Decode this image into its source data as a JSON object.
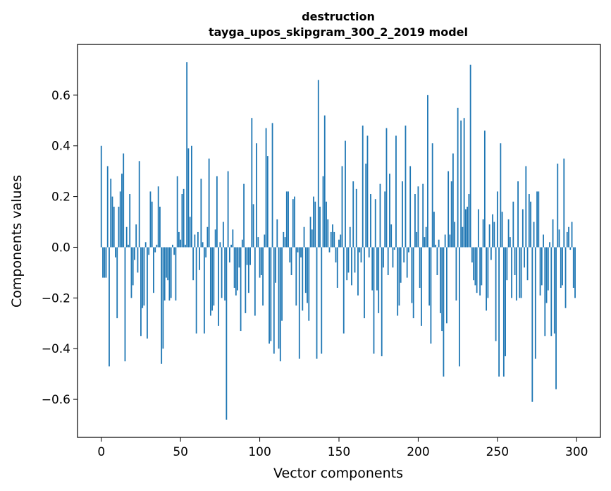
{
  "chart_data": {
    "type": "bar",
    "title": "destruction",
    "subtitle": "tayga_upos_skipgram_300_2_2019 model",
    "xlabel": "Vector components",
    "ylabel": "Components values",
    "xlim": [
      -15,
      315
    ],
    "ylim": [
      -0.75,
      0.8
    ],
    "xticks": [
      0,
      50,
      100,
      150,
      200,
      250,
      300
    ],
    "yticks": [
      -0.6,
      -0.4,
      -0.2,
      0.0,
      0.2,
      0.4,
      0.6
    ],
    "ytick_labels": [
      "−0.6",
      "−0.4",
      "−0.2",
      "0.0",
      "0.2",
      "0.4",
      "0.6"
    ],
    "xtick_labels": [
      "0",
      "50",
      "100",
      "150",
      "200",
      "250",
      "300"
    ],
    "bar_color": "#1f77b4",
    "grid": false,
    "legend": false,
    "x": [
      0,
      1,
      2,
      3,
      4,
      5,
      6,
      7,
      8,
      9,
      10,
      11,
      12,
      13,
      14,
      15,
      16,
      17,
      18,
      19,
      20,
      21,
      22,
      23,
      24,
      25,
      26,
      27,
      28,
      29,
      30,
      31,
      32,
      33,
      34,
      35,
      36,
      37,
      38,
      39,
      40,
      41,
      42,
      43,
      44,
      45,
      46,
      47,
      48,
      49,
      50,
      51,
      52,
      53,
      54,
      55,
      56,
      57,
      58,
      59,
      60,
      61,
      62,
      63,
      64,
      65,
      66,
      67,
      68,
      69,
      70,
      71,
      72,
      73,
      74,
      75,
      76,
      77,
      78,
      79,
      80,
      81,
      82,
      83,
      84,
      85,
      86,
      87,
      88,
      89,
      90,
      91,
      92,
      93,
      94,
      95,
      96,
      97,
      98,
      99,
      100,
      101,
      102,
      103,
      104,
      105,
      106,
      107,
      108,
      109,
      110,
      111,
      112,
      113,
      114,
      115,
      116,
      117,
      118,
      119,
      120,
      121,
      122,
      123,
      124,
      125,
      126,
      127,
      128,
      129,
      130,
      131,
      132,
      133,
      134,
      135,
      136,
      137,
      138,
      139,
      140,
      141,
      142,
      143,
      144,
      145,
      146,
      147,
      148,
      149,
      150,
      151,
      152,
      153,
      154,
      155,
      156,
      157,
      158,
      159,
      160,
      161,
      162,
      163,
      164,
      165,
      166,
      167,
      168,
      169,
      170,
      171,
      172,
      173,
      174,
      175,
      176,
      177,
      178,
      179,
      180,
      181,
      182,
      183,
      184,
      185,
      186,
      187,
      188,
      189,
      190,
      191,
      192,
      193,
      194,
      195,
      196,
      197,
      198,
      199,
      200,
      201,
      202,
      203,
      204,
      205,
      206,
      207,
      208,
      209,
      210,
      211,
      212,
      213,
      214,
      215,
      216,
      217,
      218,
      219,
      220,
      221,
      222,
      223,
      224,
      225,
      226,
      227,
      228,
      229,
      230,
      231,
      232,
      233,
      234,
      235,
      236,
      237,
      238,
      239,
      240,
      241,
      242,
      243,
      244,
      245,
      246,
      247,
      248,
      249,
      250,
      251,
      252,
      253,
      254,
      255,
      256,
      257,
      258,
      259,
      260,
      261,
      262,
      263,
      264,
      265,
      266,
      267,
      268,
      269,
      270,
      271,
      272,
      273,
      274,
      275,
      276,
      277,
      278,
      279,
      280,
      281,
      282,
      283,
      284,
      285,
      286,
      287,
      288,
      289,
      290,
      291,
      292,
      293,
      294,
      295,
      296,
      297,
      298,
      299
    ],
    "values": [
      0.4,
      -0.12,
      -0.12,
      -0.12,
      0.32,
      -0.47,
      0.27,
      0.2,
      0.16,
      -0.04,
      -0.28,
      0.16,
      0.22,
      0.29,
      0.37,
      -0.45,
      0.08,
      0.01,
      0.21,
      -0.2,
      -0.15,
      -0.05,
      0.09,
      -0.1,
      0.34,
      -0.35,
      -0.24,
      -0.23,
      0.02,
      -0.36,
      -0.03,
      0.22,
      0.18,
      -0.18,
      -0.02,
      0.01,
      0.24,
      0.16,
      -0.46,
      -0.4,
      -0.21,
      -0.12,
      -0.13,
      -0.21,
      -0.2,
      0.01,
      -0.03,
      -0.21,
      0.28,
      0.06,
      0.03,
      0.21,
      0.23,
      0.01,
      0.73,
      0.39,
      0.12,
      0.4,
      -0.13,
      0.05,
      -0.34,
      0.06,
      -0.09,
      0.27,
      0.02,
      -0.34,
      -0.04,
      0.08,
      0.35,
      -0.27,
      -0.25,
      -0.23,
      0.07,
      0.28,
      -0.31,
      0.02,
      -0.2,
      0.1,
      -0.21,
      -0.68,
      0.3,
      -0.06,
      0.01,
      0.07,
      -0.16,
      -0.19,
      -0.17,
      -0.08,
      -0.33,
      0.03,
      0.25,
      -0.26,
      -0.07,
      -0.18,
      -0.07,
      0.51,
      0.17,
      -0.27,
      0.41,
      0.04,
      -0.12,
      -0.11,
      -0.23,
      0.05,
      0.47,
      0.36,
      -0.38,
      -0.37,
      0.49,
      -0.42,
      -0.14,
      0.11,
      -0.4,
      -0.45,
      -0.29,
      0.06,
      0.04,
      0.22,
      0.22,
      -0.06,
      -0.11,
      0.19,
      0.2,
      -0.23,
      -0.02,
      -0.44,
      -0.04,
      -0.25,
      0.08,
      -0.18,
      -0.22,
      -0.29,
      0.12,
      0.07,
      0.2,
      0.18,
      -0.44,
      0.66,
      0.16,
      -0.42,
      0.28,
      0.52,
      0.18,
      0.11,
      -0.02,
      0.06,
      0.09,
      0.06,
      -0.06,
      -0.16,
      0.03,
      0.05,
      0.32,
      -0.34,
      0.42,
      -0.13,
      -0.1,
      0.08,
      -0.15,
      0.26,
      -0.1,
      0.23,
      -0.19,
      -0.02,
      -0.06,
      0.48,
      -0.28,
      0.33,
      0.44,
      -0.04,
      0.21,
      -0.17,
      -0.42,
      0.19,
      -0.17,
      -0.26,
      0.25,
      -0.43,
      -0.08,
      0.22,
      0.47,
      -0.11,
      0.29,
      0.09,
      -0.08,
      -0.01,
      0.44,
      -0.27,
      -0.23,
      -0.14,
      0.26,
      -0.06,
      0.48,
      -0.12,
      -0.02,
      0.32,
      -0.22,
      -0.28,
      0.21,
      0.06,
      0.24,
      -0.16,
      -0.31,
      0.25,
      0.04,
      0.08,
      0.6,
      -0.23,
      -0.38,
      0.41,
      0.14,
      0.01,
      -0.11,
      0.03,
      -0.26,
      -0.33,
      -0.51,
      0.05,
      -0.3,
      0.3,
      0.05,
      0.26,
      0.37,
      0.1,
      -0.21,
      0.55,
      -0.47,
      0.5,
      0.08,
      0.51,
      0.15,
      0.16,
      0.21,
      0.72,
      -0.06,
      -0.13,
      -0.15,
      -0.18,
      0.15,
      -0.19,
      -0.15,
      0.11,
      0.46,
      -0.25,
      -0.2,
      0.09,
      -0.05,
      0.13,
      0.1,
      -0.37,
      0.22,
      -0.51,
      0.41,
      0.14,
      -0.51,
      -0.43,
      -0.13,
      0.11,
      0.04,
      -0.2,
      0.18,
      -0.11,
      -0.21,
      0.26,
      -0.2,
      -0.2,
      0.15,
      -0.08,
      0.32,
      -0.13,
      0.21,
      0.18,
      -0.61,
      0.1,
      -0.44,
      0.22,
      0.22,
      -0.19,
      -0.15,
      0.05,
      -0.35,
      -0.22,
      -0.17,
      0.02,
      -0.35,
      0.11,
      -0.34,
      -0.56,
      0.33,
      0.07,
      -0.16,
      -0.15,
      0.35,
      -0.24,
      0.06,
      0.08,
      -0.01,
      0.1,
      -0.16,
      -0.2
    ]
  }
}
